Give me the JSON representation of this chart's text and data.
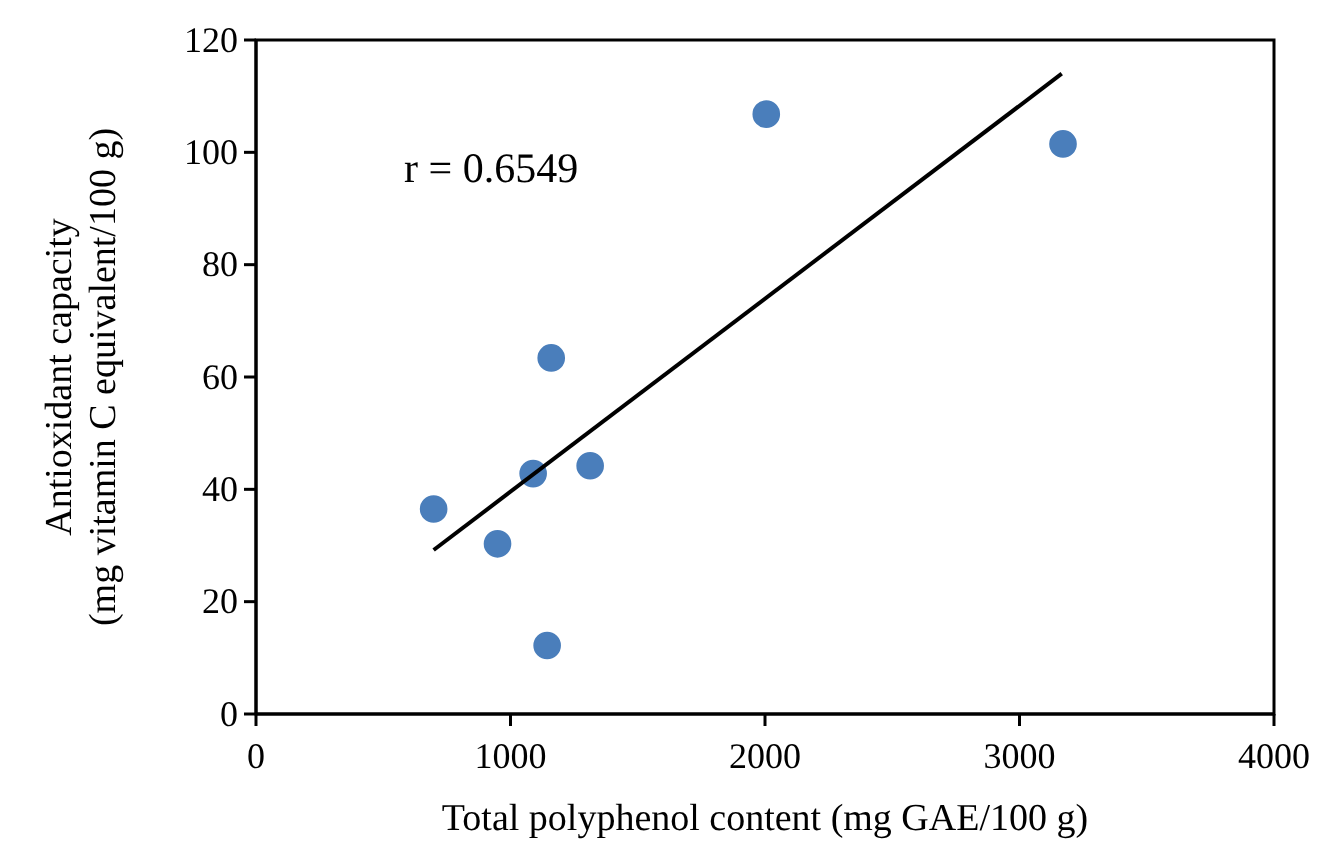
{
  "chart_data": {
    "type": "scatter",
    "xlabel": "Total polyphenol content (mg GAE/100 g)",
    "ylabel": "Antioxidant capacity\n(mg vitamin C equivalent/100 g)",
    "xlim": [
      0,
      4000
    ],
    "xticks": [
      0,
      1000,
      2000,
      3000,
      4000
    ],
    "ylim": [
      0,
      120
    ],
    "yticks": [
      0,
      20,
      40,
      60,
      80,
      100,
      120
    ],
    "grid": false,
    "marker": "circle",
    "annotations": [
      "r = 0.6549"
    ],
    "series": [
      {
        "color": "#4a7ebb",
        "x": [
          698,
          949,
          1089,
          1160,
          1144,
          1313,
          2005,
          3171
        ],
        "values": [
          36.5,
          30.3,
          42.8,
          63.4,
          12.2,
          44.2,
          106.8,
          101.5
        ]
      },
      {
        "type": "line",
        "color": "#000000",
        "line_style": "solid",
        "marker": "none",
        "x": [
          698,
          3166
        ],
        "values": [
          29.2,
          114.0
        ]
      }
    ]
  }
}
